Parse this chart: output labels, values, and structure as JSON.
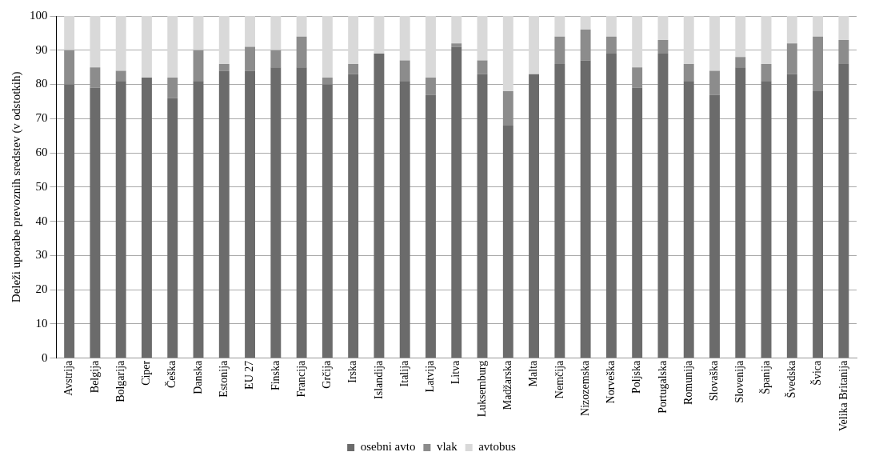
{
  "chart_data": {
    "type": "bar",
    "stacked": true,
    "ylabel": "Deleži uporabe prevoznih sredstev (v odstotkih)",
    "categories": [
      "Avstrija",
      "Belgija",
      "Bolgarija",
      "Ciper",
      "Češka",
      "Danska",
      "Estonija",
      "EU 27",
      "Finska",
      "Francija",
      "Grčija",
      "Irska",
      "Islandija",
      "Italija",
      "Latvija",
      "Litva",
      "Luksemburg",
      "Madžarska",
      "Malta",
      "Nemčija",
      "Nizozemska",
      "Norveška",
      "Poljska",
      "Portugalska",
      "Romunija",
      "Slovaška",
      "Slovenija",
      "Španija",
      "Švedska",
      "Švica",
      "Velika Britanija"
    ],
    "series": [
      {
        "name": "osebni avto",
        "color": "#6b6b6b",
        "values": [
          80,
          79,
          81,
          82,
          76,
          81,
          84,
          84,
          85,
          85,
          80,
          83,
          89,
          81,
          77,
          91,
          83,
          68,
          83,
          86,
          87,
          89,
          79,
          89,
          81,
          77,
          85,
          81,
          83,
          78,
          86
        ]
      },
      {
        "name": "vlak",
        "color": "#8c8c8c",
        "values": [
          10,
          6,
          3,
          0,
          6,
          9,
          2,
          7,
          5,
          9,
          2,
          3,
          0,
          6,
          5,
          1,
          4,
          10,
          0,
          8,
          9,
          5,
          6,
          4,
          5,
          7,
          3,
          5,
          9,
          16,
          7
        ]
      },
      {
        "name": "avtobus",
        "color": "#d9d9d9",
        "values": [
          10,
          15,
          16,
          18,
          18,
          10,
          14,
          9,
          10,
          6,
          18,
          14,
          11,
          13,
          18,
          8,
          13,
          22,
          17,
          6,
          4,
          6,
          15,
          7,
          14,
          16,
          12,
          14,
          8,
          6,
          7
        ]
      }
    ],
    "ylim": [
      0,
      100
    ],
    "yticks": [
      0,
      10,
      20,
      30,
      40,
      50,
      60,
      70,
      80,
      90,
      100
    ],
    "grid": "y",
    "legend": "bottom"
  }
}
